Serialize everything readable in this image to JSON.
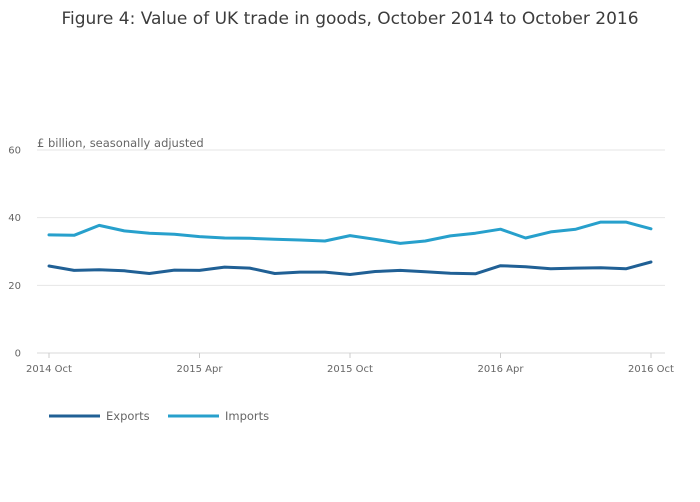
{
  "chart_data": {
    "type": "line",
    "title": "Figure 4: Value of UK trade in goods, October 2014 to October 2016",
    "ylabel": "£ billion, seasonally adjusted",
    "xlabel": "",
    "ylim": [
      0,
      60
    ],
    "yticks": [
      0,
      20,
      40,
      60
    ],
    "grid": true,
    "legend": "bottom-left",
    "xticks": [
      {
        "index": 0,
        "label": "2014 Oct"
      },
      {
        "index": 6,
        "label": "2015 Apr"
      },
      {
        "index": 12,
        "label": "2015 Oct"
      },
      {
        "index": 18,
        "label": "2016 Apr"
      },
      {
        "index": 24,
        "label": "2016 Oct"
      }
    ],
    "x": [
      "2014 Oct",
      "2014 Nov",
      "2014 Dec",
      "2015 Jan",
      "2015 Feb",
      "2015 Mar",
      "2015 Apr",
      "2015 May",
      "2015 Jun",
      "2015 Jul",
      "2015 Aug",
      "2015 Sep",
      "2015 Oct",
      "2015 Nov",
      "2015 Dec",
      "2016 Jan",
      "2016 Feb",
      "2016 Mar",
      "2016 Apr",
      "2016 May",
      "2016 Jun",
      "2016 Jul",
      "2016 Aug",
      "2016 Sep",
      "2016 Oct"
    ],
    "series": [
      {
        "name": "Exports",
        "color": "#206095",
        "values": [
          25.7,
          24.4,
          24.6,
          24.3,
          23.5,
          24.5,
          24.4,
          25.4,
          25.1,
          23.5,
          23.9,
          23.9,
          23.2,
          24.1,
          24.4,
          24.0,
          23.6,
          23.4,
          25.8,
          25.5,
          24.9,
          25.1,
          25.2,
          24.9,
          26.9
        ]
      },
      {
        "name": "Imports",
        "color": "#27a0cc",
        "values": [
          34.9,
          34.8,
          37.7,
          36.1,
          35.4,
          35.1,
          34.4,
          34.0,
          33.9,
          33.6,
          33.4,
          33.1,
          34.7,
          33.6,
          32.4,
          33.1,
          34.6,
          35.4,
          36.6,
          34.0,
          35.8,
          36.6,
          38.7,
          38.7,
          36.7
        ]
      }
    ]
  }
}
